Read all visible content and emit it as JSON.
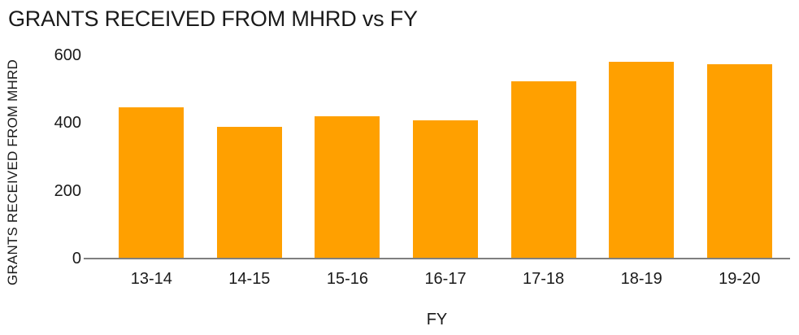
{
  "chart_data": {
    "type": "bar",
    "title": "GRANTS RECEIVED FROM MHRD vs FY",
    "xlabel": "FY",
    "ylabel": "GRANTS RECEIVED FROM MHRD",
    "categories": [
      "13-14",
      "14-15",
      "15-16",
      "16-17",
      "17-18",
      "18-19",
      "19-20"
    ],
    "values": [
      445,
      386,
      417,
      405,
      521,
      578,
      572
    ],
    "ylim": [
      0,
      600
    ],
    "yticks": [
      0,
      200,
      400,
      600
    ],
    "grid": false,
    "legend": false,
    "bar_color": "#FFA000",
    "axis_color": "#7f7f7f",
    "text_color": "#1a1a1a",
    "background_color": "#ffffff"
  }
}
